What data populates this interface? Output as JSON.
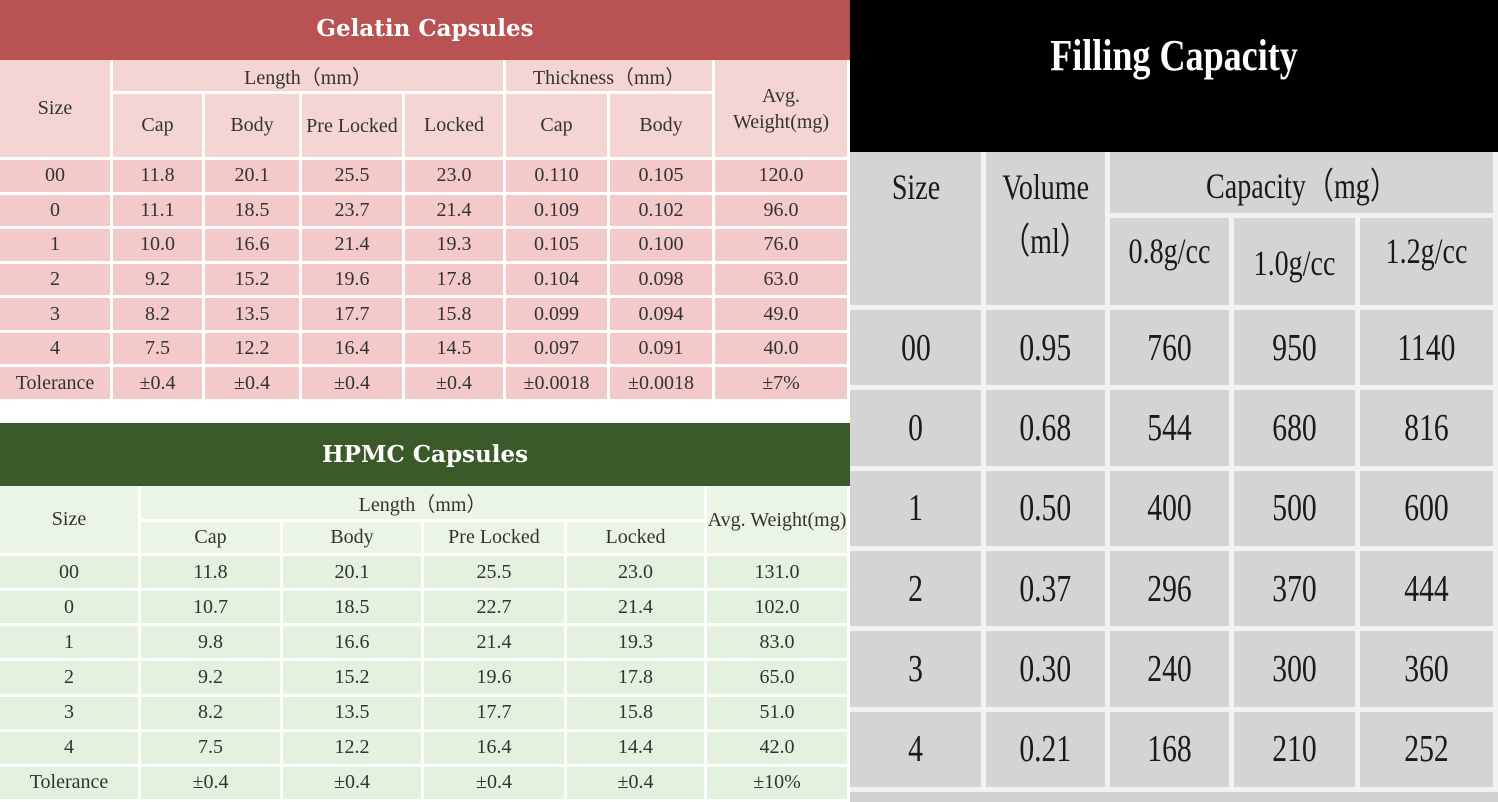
{
  "gelatin": {
    "title": "Gelatin Capsules",
    "headers": {
      "size": "Size",
      "length": "Length（mm）",
      "thickness": "Thickness（mm）",
      "avg_weight": "Avg. Weight(mg)",
      "cap": "Cap",
      "body": "Body",
      "pre_locked": "Pre Locked",
      "locked": "Locked",
      "t_cap": "Cap",
      "t_body": "Body"
    },
    "rows": [
      [
        "00",
        "11.8",
        "20.1",
        "25.5",
        "23.0",
        "0.110",
        "0.105",
        "120.0"
      ],
      [
        "0",
        "11.1",
        "18.5",
        "23.7",
        "21.4",
        "0.109",
        "0.102",
        "96.0"
      ],
      [
        "1",
        "10.0",
        "16.6",
        "21.4",
        "19.3",
        "0.105",
        "0.100",
        "76.0"
      ],
      [
        "2",
        "9.2",
        "15.2",
        "19.6",
        "17.8",
        "0.104",
        "0.098",
        "63.0"
      ],
      [
        "3",
        "8.2",
        "13.5",
        "17.7",
        "15.8",
        "0.099",
        "0.094",
        "49.0"
      ],
      [
        "4",
        "7.5",
        "12.2",
        "16.4",
        "14.5",
        "0.097",
        "0.091",
        "40.0"
      ],
      [
        "Tolerance",
        "±0.4",
        "±0.4",
        "±0.4",
        "±0.4",
        "±0.0018",
        "±0.0018",
        "±7%"
      ]
    ]
  },
  "hpmc": {
    "title": "HPMC Capsules",
    "headers": {
      "size": "Size",
      "length": "Length（mm）",
      "avg_weight": "Avg. Weight(mg)",
      "cap": "Cap",
      "body": "Body",
      "pre_locked": "Pre Locked",
      "locked": "Locked"
    },
    "rows": [
      [
        "00",
        "11.8",
        "20.1",
        "25.5",
        "23.0",
        "131.0"
      ],
      [
        "0",
        "10.7",
        "18.5",
        "22.7",
        "21.4",
        "102.0"
      ],
      [
        "1",
        "9.8",
        "16.6",
        "21.4",
        "19.3",
        "83.0"
      ],
      [
        "2",
        "9.2",
        "15.2",
        "19.6",
        "17.8",
        "65.0"
      ],
      [
        "3",
        "8.2",
        "13.5",
        "17.7",
        "15.8",
        "51.0"
      ],
      [
        "4",
        "7.5",
        "12.2",
        "16.4",
        "14.4",
        "42.0"
      ],
      [
        "Tolerance",
        "±0.4",
        "±0.4",
        "±0.4",
        "±0.4",
        "±10%"
      ]
    ]
  },
  "filling": {
    "title": "Filling Capacity",
    "headers": {
      "size": "Size",
      "volume_line1": "Volume",
      "volume_line2": "（ml）",
      "capacity": "Capacity（mg）",
      "d08": "0.8g/cc",
      "d10": "1.0g/cc",
      "d12": "1.2g/cc"
    },
    "rows": [
      [
        "00",
        "0.95",
        "760",
        "950",
        "1140"
      ],
      [
        "0",
        "0.68",
        "544",
        "680",
        "816"
      ],
      [
        "1",
        "0.50",
        "400",
        "500",
        "600"
      ],
      [
        "2",
        "0.37",
        "296",
        "370",
        "444"
      ],
      [
        "3",
        "0.30",
        "240",
        "300",
        "360"
      ],
      [
        "4",
        "0.21",
        "168",
        "210",
        "252"
      ]
    ]
  },
  "colors": {
    "gelatin_title_bg": "#b95353",
    "gelatin_cell_bg": "#f3c9c9",
    "hpmc_title_bg": "#3b5a2a",
    "hpmc_cell_bg": "#e4f1df",
    "filling_title_bg": "#000000",
    "filling_cell_bg": "#d4d4d4"
  }
}
